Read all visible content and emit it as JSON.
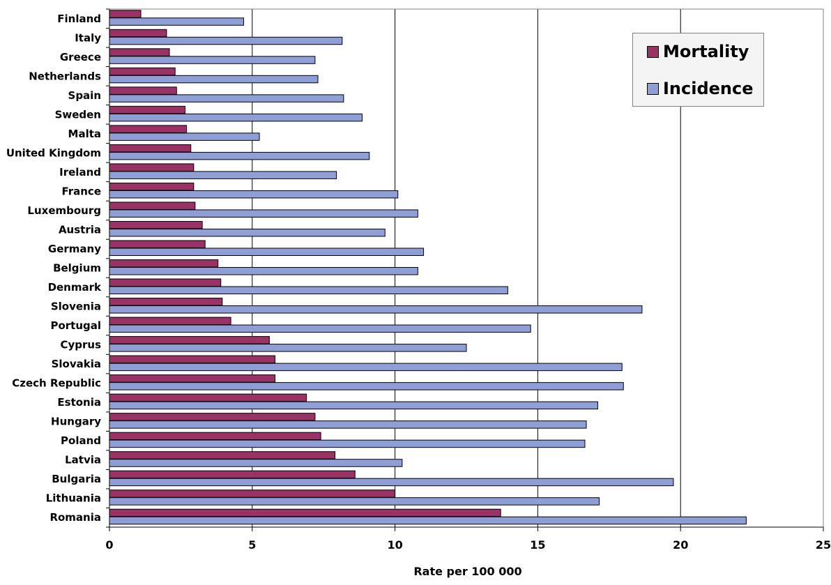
{
  "chart_data": {
    "type": "bar",
    "orientation": "horizontal",
    "categories": [
      "Finland",
      "Italy",
      "Greece",
      "Netherlands",
      "Spain",
      "Sweden",
      "Malta",
      "United Kingdom",
      "Ireland",
      "France",
      "Luxembourg",
      "Austria",
      "Germany",
      "Belgium",
      "Denmark",
      "Slovenia",
      "Portugal",
      "Cyprus",
      "Slovakia",
      "Czech Republic",
      "Estonia",
      "Hungary",
      "Poland",
      "Latvia",
      "Bulgaria",
      "Lithuania",
      "Romania"
    ],
    "series": [
      {
        "name": "Mortality",
        "color": "#993366",
        "values": [
          1.1,
          2.0,
          2.1,
          2.3,
          2.35,
          2.65,
          2.7,
          2.85,
          2.95,
          2.95,
          3.0,
          3.25,
          3.35,
          3.8,
          3.9,
          3.95,
          4.25,
          5.6,
          5.8,
          5.8,
          6.9,
          7.2,
          7.4,
          7.9,
          8.6,
          10.0,
          13.7
        ]
      },
      {
        "name": "Incidence",
        "color": "#8f9fd6",
        "values": [
          4.7,
          8.15,
          7.2,
          7.3,
          8.2,
          8.85,
          5.25,
          9.1,
          7.95,
          10.1,
          10.8,
          9.65,
          11.0,
          10.8,
          13.95,
          18.65,
          14.75,
          12.5,
          17.95,
          18.0,
          17.1,
          16.7,
          16.65,
          10.25,
          19.75,
          17.15,
          22.3
        ]
      }
    ],
    "xlabel": "Rate per 100 000",
    "ylabel": "",
    "xlim": [
      0,
      25
    ],
    "xticks": [
      "0",
      "5",
      "10",
      "15",
      "20",
      "25"
    ],
    "grid": "vertical",
    "legend_position": "top-right"
  }
}
